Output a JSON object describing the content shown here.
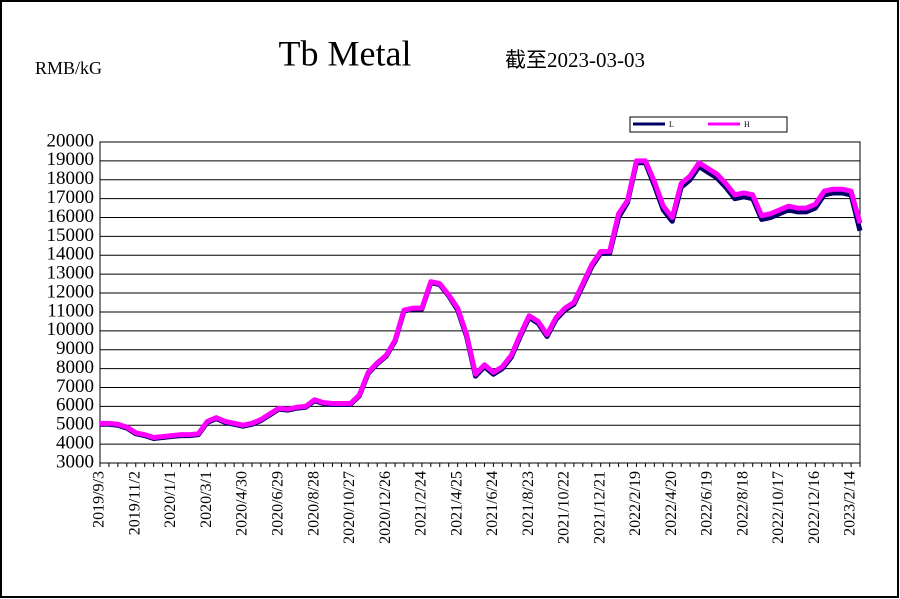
{
  "chart_data": {
    "type": "line",
    "title": "Tb Metal",
    "subtitle": "截至2023-03-03",
    "y_label": "RMB/kG",
    "categories": [
      "2019/9/3",
      null,
      null,
      null,
      "2019/11/2",
      null,
      null,
      null,
      "2020/1/1",
      null,
      null,
      null,
      "2020/3/1",
      null,
      null,
      null,
      "2020/4/30",
      null,
      null,
      null,
      "2020/6/29",
      null,
      null,
      null,
      "2020/8/28",
      null,
      null,
      null,
      "2020/10/27",
      null,
      null,
      null,
      "2020/12/26",
      null,
      null,
      null,
      "2021/2/24",
      null,
      null,
      null,
      "2021/4/25",
      null,
      null,
      null,
      "2021/6/24",
      null,
      null,
      null,
      "2021/8/23",
      null,
      null,
      null,
      "2021/10/22",
      null,
      null,
      null,
      "2021/12/21",
      null,
      null,
      null,
      "2022/2/19",
      null,
      null,
      null,
      "2022/4/20",
      null,
      null,
      null,
      "2022/6/19",
      null,
      null,
      null,
      "2022/8/18",
      null,
      null,
      null,
      "2022/10/17",
      null,
      null,
      null,
      "2022/12/16",
      null,
      null,
      null,
      "2023/2/14",
      null
    ],
    "series": [
      {
        "name": "L",
        "color": "#000066",
        "values": [
          5050,
          5050,
          5000,
          4850,
          4550,
          4450,
          4300,
          4350,
          4400,
          4450,
          4450,
          4500,
          5150,
          5350,
          5150,
          5050,
          4950,
          5050,
          5250,
          5550,
          5850,
          5800,
          5900,
          5950,
          6300,
          6150,
          6100,
          6100,
          6100,
          6550,
          7750,
          8250,
          8650,
          9450,
          11050,
          11150,
          11150,
          12550,
          12450,
          11850,
          11100,
          9700,
          7600,
          8100,
          7700,
          8000,
          8600,
          9700,
          10700,
          10400,
          9700,
          10600,
          11100,
          11400,
          12400,
          13400,
          14100,
          14100,
          16000,
          16800,
          18900,
          18900,
          17700,
          16400,
          15800,
          17600,
          18000,
          18700,
          18400,
          18100,
          17600,
          17000,
          17100,
          17000,
          15900,
          16000,
          16200,
          16400,
          16300,
          16300,
          16500,
          17200,
          17300,
          17300,
          17200,
          15300
        ]
      },
      {
        "name": "H",
        "color": "#ff00ff",
        "values": [
          5100,
          5100,
          5050,
          4900,
          4600,
          4500,
          4350,
          4400,
          4450,
          4500,
          4500,
          4550,
          5200,
          5400,
          5200,
          5100,
          5000,
          5100,
          5300,
          5600,
          5900,
          5850,
          5950,
          6000,
          6350,
          6200,
          6150,
          6150,
          6150,
          6600,
          7800,
          8300,
          8700,
          9500,
          11100,
          11200,
          11200,
          12600,
          12500,
          11900,
          11200,
          9800,
          7700,
          8200,
          7800,
          8100,
          8700,
          9800,
          10800,
          10500,
          9800,
          10700,
          11200,
          11500,
          12500,
          13500,
          14200,
          14200,
          16200,
          16900,
          19000,
          19000,
          17900,
          16600,
          16000,
          17800,
          18200,
          18900,
          18600,
          18300,
          17800,
          17200,
          17300,
          17200,
          16100,
          16200,
          16400,
          16600,
          16500,
          16500,
          16700,
          17400,
          17500,
          17500,
          17400,
          15700
        ]
      }
    ],
    "ylim": [
      3000,
      20000
    ],
    "yticks": [
      3000,
      4000,
      5000,
      6000,
      7000,
      8000,
      9000,
      10000,
      11000,
      12000,
      13000,
      14000,
      15000,
      16000,
      17000,
      18000,
      19000,
      20000
    ],
    "grid": true
  }
}
